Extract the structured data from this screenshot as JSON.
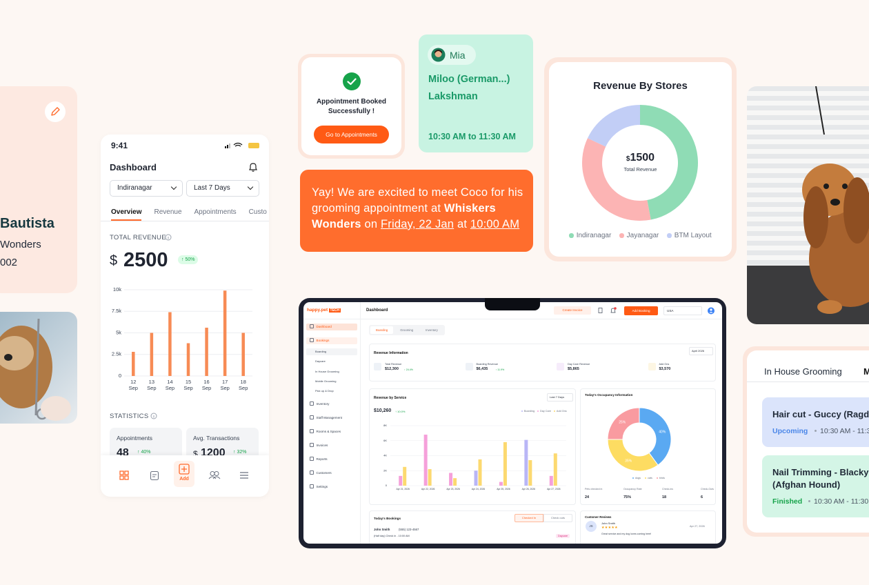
{
  "left_profile": {
    "name": "Bautista",
    "business": "Wonders",
    "phone": "002"
  },
  "phone": {
    "time": "9:41",
    "title": "Dashboard",
    "store": "Indiranagar",
    "range": "Last 7 Days",
    "tabs": [
      "Overview",
      "Revenue",
      "Appointments",
      "Custo"
    ],
    "total_revenue_label": "TOTAL REVENUE",
    "currency": "$",
    "total_revenue": 2500,
    "total_revenue_change": "↑ 50%",
    "revenue_chart": {
      "type": "bar",
      "categories": [
        "12 Sep",
        "13 Sep",
        "14 Sep",
        "15 Sep",
        "16 Sep",
        "17 Sep",
        "18 Sep"
      ],
      "values": [
        2800,
        5000,
        7400,
        3800,
        5600,
        9900,
        5000
      ],
      "color": "#f78b55",
      "ylim": [
        0,
        10000
      ],
      "yticks": [
        0,
        {
          "value": 2500,
          "label": "2.5k"
        },
        {
          "value": 5000,
          "label": "5k"
        },
        {
          "value": 7500,
          "label": "7.5k"
        },
        {
          "value": 10000,
          "label": "10k"
        }
      ],
      "grid": true
    },
    "statistics_label": "STATISTICS",
    "stats": [
      {
        "label": "Appointments",
        "value": 48,
        "change": "↑ 40%"
      },
      {
        "label": "Avg. Transactions",
        "currency": "$",
        "value": 1200,
        "change": "↑ 32%"
      }
    ],
    "add_label": "Add"
  },
  "booking_confirmation": {
    "message": "Appointment Booked Successfully !",
    "button": "Go to Appointments"
  },
  "appointment_card": {
    "staff": "Mia",
    "pet": "Miloo (German...)",
    "owner": "Lakshman",
    "time": "10:30 AM to 11:30 AM"
  },
  "message": {
    "parts": [
      "Yay! We are excited to meet Coco for his grooming appointment at ",
      "Whiskers Wonders",
      " on ",
      "Friday, 22 Jan",
      " at ",
      "10:00 AM"
    ]
  },
  "stores_chart": {
    "type": "donut",
    "title": "Revenue By Stores",
    "center_currency": "$",
    "center_value": 1500,
    "center_label": "Total Revenue",
    "categories": [
      "Indiranagar",
      "Jayanagar",
      "BTM Layout"
    ],
    "values": [
      47,
      35,
      18
    ],
    "colors": [
      "#8fdcb5",
      "#fcb4b4",
      "#c2cef6"
    ]
  },
  "laptop": {
    "logo": "happy.pet",
    "logo_badge": "TECH",
    "page_title": "Dashboard",
    "create_invoice": "Create Invoice",
    "add_booking": "Add Booking",
    "country": "USA",
    "sidebar": [
      {
        "label": "Dashboard"
      },
      {
        "label": "Bookings",
        "children": [
          "Boarding",
          "Daycare",
          "In House Grooming",
          "Mobile Grooming",
          "Pick up & Drop"
        ]
      },
      {
        "label": "Inventory"
      },
      {
        "label": "Staff Management"
      },
      {
        "label": "Rooms & Spaces"
      },
      {
        "label": "Invoices"
      },
      {
        "label": "Reports"
      },
      {
        "label": "Customers"
      },
      {
        "label": "Settings"
      }
    ],
    "tabs": [
      "Boarding",
      "Grooming",
      "Inventory"
    ],
    "revenue_info": {
      "title": "Revenue Information",
      "period": "April 2026",
      "items": [
        {
          "label": "Total Revenue",
          "value": "$12,300",
          "change": "↑ 24.4%"
        },
        {
          "label": "Boarding Revenue",
          "value": "$6,435",
          "change": "↑ 11.9%"
        },
        {
          "label": "Day Care Revenue",
          "value": "$5,865"
        },
        {
          "label": "Add Ons",
          "value": "$3,570"
        }
      ]
    },
    "service_chart": {
      "type": "bar",
      "title": "Revenue by Service",
      "total": "$10,260",
      "change": "↑ 10.0%",
      "range": "Last 7 Days",
      "categories": [
        "Apr 21, 2026",
        "Apr 22, 2026",
        "Apr 23, 2026",
        "Apr 24, 2026",
        "Apr 25, 2026",
        "Apr 26, 2026",
        "Apr 27, 2026"
      ],
      "series": [
        {
          "name": "Boarding",
          "color": "#b9b6f6",
          "values": [
            null,
            null,
            null,
            2000,
            null,
            6100,
            null
          ]
        },
        {
          "name": "Day Care",
          "color": "#f5a0da",
          "values": [
            1300,
            6800,
            1700,
            null,
            500,
            null,
            1300
          ]
        },
        {
          "name": "Add Ons",
          "color": "#fcd970",
          "values": [
            2500,
            2200,
            1000,
            3500,
            5800,
            3400,
            4300
          ]
        }
      ],
      "ylim": [
        0,
        8000
      ],
      "yticks": [
        0,
        {
          "value": 2000,
          "label": "2K"
        },
        {
          "value": 4000,
          "label": "4K"
        },
        {
          "value": 6000,
          "label": "6K"
        },
        {
          "value": 8000,
          "label": "8K"
        }
      ],
      "grid": true
    },
    "occupancy_chart": {
      "type": "donut",
      "title": "Today's Occupancy Information",
      "categories": [
        "dogs",
        "cats",
        "birds"
      ],
      "values": [
        40,
        35,
        25
      ],
      "value_labels": [
        "40%",
        "35%",
        "25%"
      ],
      "colors": [
        "#5aa9f2",
        "#fddc62",
        "#f99ba0"
      ]
    },
    "occupancy_stats": [
      {
        "label": "Pets checked in",
        "value": 24
      },
      {
        "label": "Occupancy Rate",
        "value": "75%"
      },
      {
        "label": "Check-ins",
        "value": 18
      },
      {
        "label": "Check-Outs",
        "value": 6
      }
    ],
    "bookings": {
      "title": "Today's Bookings",
      "tabs": [
        "Checked In",
        "Check outs"
      ],
      "items": [
        {
          "name": "John Smith",
          "phone": "(555) 123-4567",
          "detail": "(Half day) Check in - 10:00 AM",
          "service": "Daycare"
        }
      ]
    },
    "reviews": {
      "title": "Customer Reviews",
      "items": [
        {
          "initials": "JS",
          "name": "John Smith",
          "date": "Apr 27, 2026",
          "rating": "★★★★★",
          "text": "Great service and my dog loves coming here!"
        }
      ]
    }
  },
  "grooming": {
    "tabs": [
      "In House Grooming",
      "M"
    ],
    "items": [
      {
        "title": "Hair cut - Guccy (Ragd",
        "status": "Upcoming",
        "time": "10:30 AM - 11:3"
      },
      {
        "title": "Nail Trimming - Blacky (Afghan Hound)",
        "status": "Finished",
        "time": "10:30 AM - 11:30"
      }
    ]
  }
}
